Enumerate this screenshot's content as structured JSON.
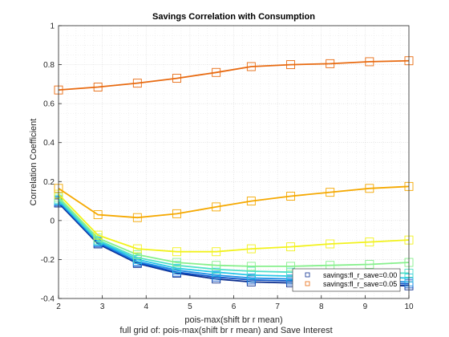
{
  "chart_data": {
    "type": "line",
    "title": "Savings Correlation with Consumption",
    "xlabel": "pois-max(shift br r mean)",
    "ylabel": "Correlation Coefficient",
    "caption": "full grid of: pois-max(shift br r mean) and Save Interest",
    "xlim": [
      2,
      10
    ],
    "ylim": [
      -0.4,
      1
    ],
    "xticks": [
      2,
      3,
      4,
      5,
      6,
      7,
      8,
      9,
      10
    ],
    "yticks": [
      -0.4,
      -0.2,
      0,
      0.2,
      0.4,
      0.6,
      0.8,
      1
    ],
    "grid": true,
    "marker": "square",
    "x": [
      2,
      2.9,
      3.8,
      4.7,
      5.6,
      6.4,
      7.3,
      8.2,
      9.1,
      10
    ],
    "series": [
      {
        "color": "#0a2d8e",
        "values": [
          0.09,
          -0.12,
          -0.22,
          -0.27,
          -0.3,
          -0.315,
          -0.32,
          -0.325,
          -0.33,
          -0.335
        ]
      },
      {
        "color": "#0f54c8",
        "values": [
          0.095,
          -0.115,
          -0.215,
          -0.265,
          -0.29,
          -0.305,
          -0.31,
          -0.315,
          -0.32,
          -0.325
        ]
      },
      {
        "color": "#1f8fe6",
        "values": [
          0.1,
          -0.11,
          -0.21,
          -0.255,
          -0.28,
          -0.295,
          -0.3,
          -0.305,
          -0.31,
          -0.315
        ]
      },
      {
        "color": "#27c6e8",
        "values": [
          0.105,
          -0.105,
          -0.2,
          -0.245,
          -0.265,
          -0.28,
          -0.285,
          -0.29,
          -0.29,
          -0.295
        ]
      },
      {
        "color": "#4fe0c8",
        "values": [
          0.11,
          -0.1,
          -0.19,
          -0.23,
          -0.25,
          -0.26,
          -0.265,
          -0.27,
          -0.27,
          -0.27
        ]
      },
      {
        "color": "#86f08c",
        "values": [
          0.12,
          -0.09,
          -0.175,
          -0.215,
          -0.23,
          -0.235,
          -0.235,
          -0.23,
          -0.225,
          -0.215
        ]
      },
      {
        "color": "#f2f21c",
        "values": [
          0.135,
          -0.075,
          -0.145,
          -0.16,
          -0.16,
          -0.145,
          -0.135,
          -0.12,
          -0.11,
          -0.1
        ]
      },
      {
        "color": "#f5a800",
        "values": [
          0.165,
          0.03,
          0.015,
          0.035,
          0.07,
          0.1,
          0.125,
          0.145,
          0.165,
          0.175
        ]
      },
      {
        "color": "#e86a10",
        "values": [
          0.67,
          0.685,
          0.705,
          0.73,
          0.76,
          0.79,
          0.8,
          0.805,
          0.815,
          0.82
        ]
      }
    ],
    "legend": {
      "placement": "bottom-right",
      "entries": [
        {
          "label": "savings:fl_r_save=0.00",
          "color": "#0a2d8e"
        },
        {
          "label": "savings:fl_r_save=0.05",
          "color": "#e86a10"
        }
      ]
    }
  }
}
